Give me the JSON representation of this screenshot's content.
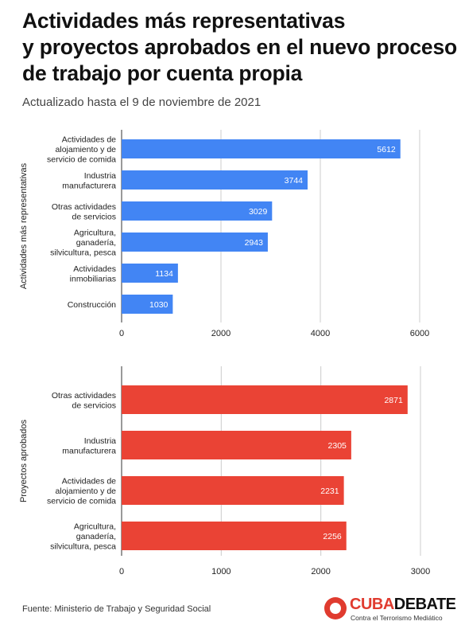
{
  "title_lines": [
    "Actividades más representativas",
    "y proyectos aprobados en el nuevo proceso",
    "de trabajo por cuenta propia"
  ],
  "subtitle": "Actualizado hasta el 9 de noviembre de 2021",
  "source": "Fuente: Ministerio de Trabajo y Seguridad Social",
  "logo": {
    "name_part1": "CUBA",
    "name_part2": "DEBATE",
    "tagline": "Contra el Terrorismo Mediático"
  },
  "chart_data": [
    {
      "type": "bar",
      "orientation": "horizontal",
      "ylabel": "Actividades más representativas",
      "xlim": [
        0,
        6000
      ],
      "ticks": [
        0,
        2000,
        4000,
        6000
      ],
      "color": "#4285f4",
      "grid": true,
      "categories": [
        [
          "Actividades de",
          "alojamiento y de",
          "servicio de comida"
        ],
        [
          "Industria",
          "manufacturera"
        ],
        [
          "Otras actividades",
          "de servicios"
        ],
        [
          "Agricultura,",
          "ganadería,",
          "silvicultura, pesca"
        ],
        [
          "Actividades",
          "inmobiliarias"
        ],
        [
          "Construcción"
        ]
      ],
      "values": [
        5612,
        3744,
        3029,
        2943,
        1134,
        1030
      ]
    },
    {
      "type": "bar",
      "orientation": "horizontal",
      "ylabel": "Proyectos aprobados",
      "xlim": [
        0,
        3000
      ],
      "ticks": [
        0,
        1000,
        2000,
        3000
      ],
      "color": "#ea4335",
      "grid": true,
      "categories": [
        [
          "Otras actividades",
          "de servicios"
        ],
        [
          "Industria",
          "manufacturera"
        ],
        [
          "Actividades de",
          "alojamiento y de",
          "servicio de comida"
        ],
        [
          "Agricultura,",
          "ganadería,",
          "silvicultura, pesca"
        ]
      ],
      "values": [
        2871,
        2305,
        2231,
        2256
      ]
    }
  ]
}
